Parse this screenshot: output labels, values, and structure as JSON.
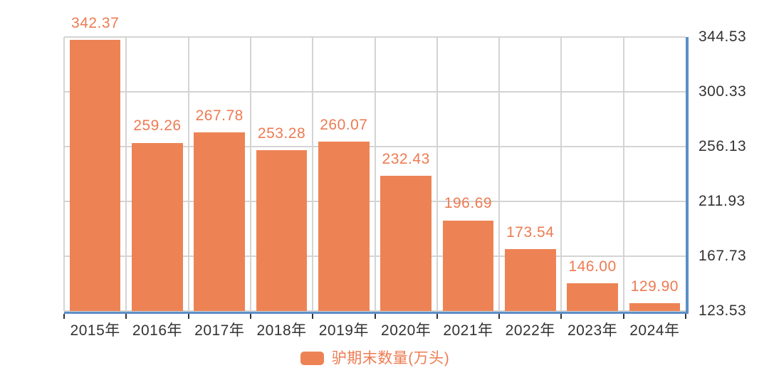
{
  "chart_data": {
    "type": "bar",
    "title": "",
    "categories": [
      "2015年",
      "2016年",
      "2017年",
      "2018年",
      "2019年",
      "2020年",
      "2021年",
      "2022年",
      "2023年",
      "2024年"
    ],
    "series": [
      {
        "name": "驴期末数量(万头)",
        "values": [
          342.37,
          259.26,
          267.78,
          253.28,
          260.07,
          232.43,
          196.69,
          173.54,
          146.0,
          129.9
        ]
      }
    ],
    "value_labels_visible": true,
    "y_axis_side": "right",
    "y_ticks": [
      344.53,
      300.33,
      256.13,
      211.93,
      167.73,
      123.53
    ],
    "ylim": [
      123.53,
      344.53
    ],
    "grid": true,
    "legend_position": "bottom"
  },
  "legend": {
    "label": "驴期末数量(万头)"
  },
  "colors": {
    "bar": "#ED8355",
    "value_label": "#ED7B52",
    "legend_text": "#ED7B52",
    "axis_line": "#5D8FC6",
    "gridline": "#D4D4D4",
    "axis_text": "#333333",
    "tick": "#333333",
    "background": "#FFFFFF"
  }
}
